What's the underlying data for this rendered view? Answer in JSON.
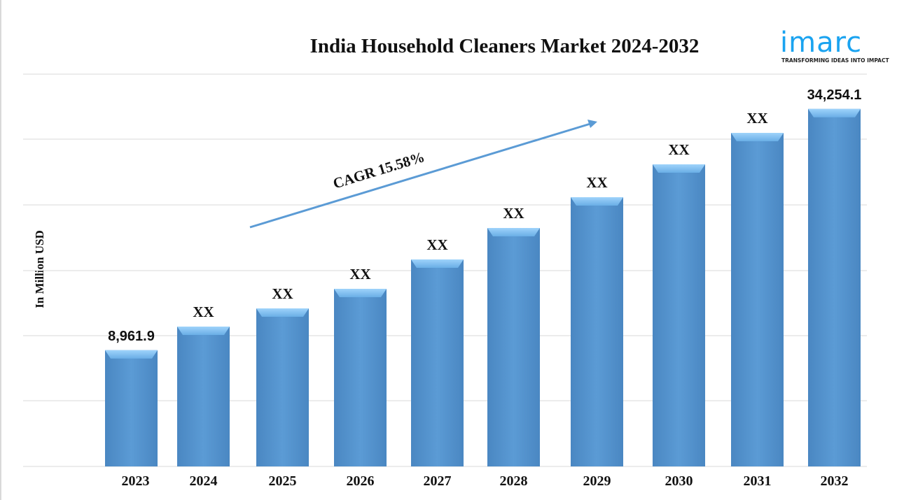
{
  "chart_data": {
    "type": "bar",
    "title": "India Household Cleaners Market 2024-2032",
    "ylabel": "In Million USD",
    "xlabel": "",
    "categories": [
      "2023",
      "2024",
      "2025",
      "2026",
      "2027",
      "2028",
      "2029",
      "2030",
      "2031",
      "2032"
    ],
    "values": [
      8961.9,
      11437,
      13343,
      15396,
      18475,
      21774,
      25000,
      28446,
      31745,
      34254.1
    ],
    "data_labels": [
      "8,961.9",
      "XX",
      "XX",
      "XX",
      "XX",
      "XX",
      "XX",
      "XX",
      "XX",
      "34,254.1"
    ],
    "annotation": "CAGR 15.58%",
    "grid": true,
    "bar_color": "#5b9bd5",
    "arrow_color": "#5b9bd5"
  },
  "logo": {
    "name": "imarc",
    "tagline": "TRANSFORMING IDEAS INTO IMPACT",
    "color": "#1aa3f0"
  }
}
